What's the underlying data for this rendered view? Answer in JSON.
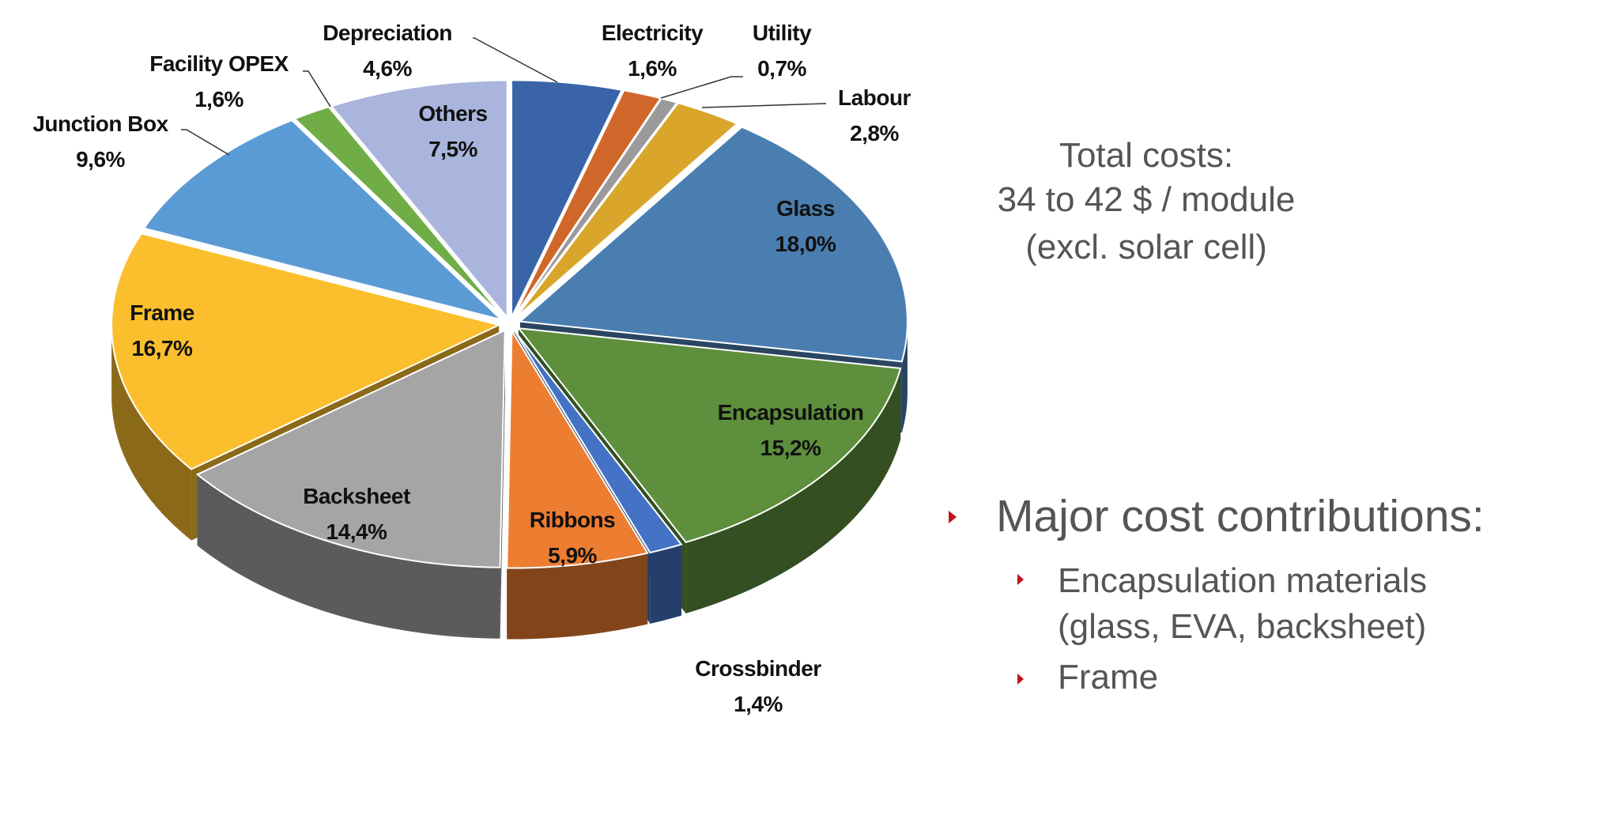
{
  "chart_data": {
    "type": "pie",
    "style": "3d-exploded",
    "start": "top",
    "direction": "clockwise",
    "slices": [
      {
        "label": "Depreciation",
        "value": 4.6,
        "text": "4,6%",
        "color": "#3A64A8"
      },
      {
        "label": "Electricity",
        "value": 1.6,
        "text": "1,6%",
        "color": "#D0672A"
      },
      {
        "label": "Utility",
        "value": 0.7,
        "text": "0,7%",
        "color": "#9A9A9A"
      },
      {
        "label": "Labour",
        "value": 2.8,
        "text": "2,8%",
        "color": "#D9A52A"
      },
      {
        "label": "Glass",
        "value": 18.0,
        "text": "18,0%",
        "color": "#4A7EB0"
      },
      {
        "label": "Encapsulation",
        "value": 15.2,
        "text": "15,2%",
        "color": "#5E8F3C"
      },
      {
        "label": "Crossbinder",
        "value": 1.4,
        "text": "1,4%",
        "color": "#4472C4"
      },
      {
        "label": "Ribbons",
        "value": 5.9,
        "text": "5,9%",
        "color": "#ED7D31"
      },
      {
        "label": "Backsheet",
        "value": 14.4,
        "text": "14,4%",
        "color": "#A5A5A5"
      },
      {
        "label": "Frame",
        "value": 16.7,
        "text": "16,7%",
        "color": "#FBBF2D"
      },
      {
        "label": "Junction Box",
        "value": 9.6,
        "text": "9,6%",
        "color": "#5B9BD5"
      },
      {
        "label": "Facility OPEX",
        "value": 1.6,
        "text": "1,6%",
        "color": "#70AD47"
      },
      {
        "label": "Others",
        "value": 7.5,
        "text": "7,5%",
        "color": "#A9B5DC"
      }
    ]
  },
  "summary": {
    "line1": "Total costs:",
    "line2": "34 to 42 $ / module",
    "line3": "(excl. solar cell)"
  },
  "bullets": {
    "main": "Major cost contributions:",
    "sub": [
      {
        "line1": "Encapsulation materials",
        "line2": "(glass, EVA, backsheet)"
      },
      {
        "line1": "Frame"
      }
    ],
    "bullet_color": "#C0141C"
  }
}
